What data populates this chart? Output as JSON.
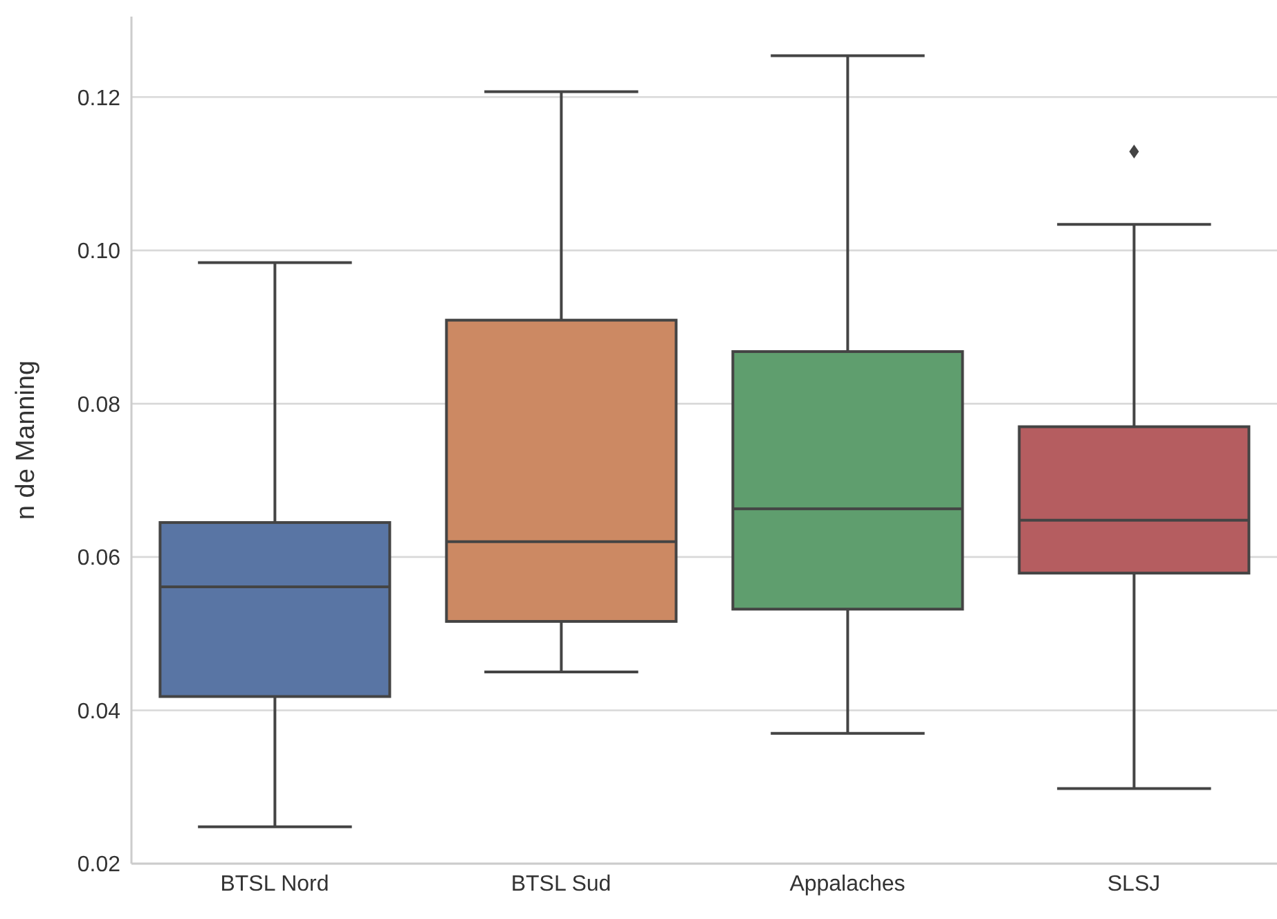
{
  "chart_data": {
    "type": "box",
    "ylabel": "n de Manning",
    "categories": [
      "BTSL Nord",
      "BTSL Sud",
      "Appalaches",
      "SLSJ"
    ],
    "colors": [
      "#5975a4",
      "#cc8963",
      "#5f9e6e",
      "#b55d60"
    ],
    "boxes": [
      {
        "low": 0.0248,
        "q1": 0.0418,
        "median": 0.0561,
        "q3": 0.0645,
        "high": 0.0984
      },
      {
        "low": 0.045,
        "q1": 0.0516,
        "median": 0.062,
        "q3": 0.0909,
        "high": 0.1207
      },
      {
        "low": 0.037,
        "q1": 0.0532,
        "median": 0.0663,
        "q3": 0.0868,
        "high": 0.1254
      },
      {
        "low": 0.0298,
        "q1": 0.0579,
        "median": 0.0648,
        "q3": 0.077,
        "high": 0.1034,
        "outliers": [
          0.1129
        ]
      }
    ],
    "ylim": [
      0.02,
      0.1305
    ],
    "yticks": [
      0.02,
      0.04,
      0.06,
      0.08,
      {
        "value": 0.1,
        "label": "0.10"
      },
      0.12
    ],
    "grid": "y",
    "legend": false
  }
}
